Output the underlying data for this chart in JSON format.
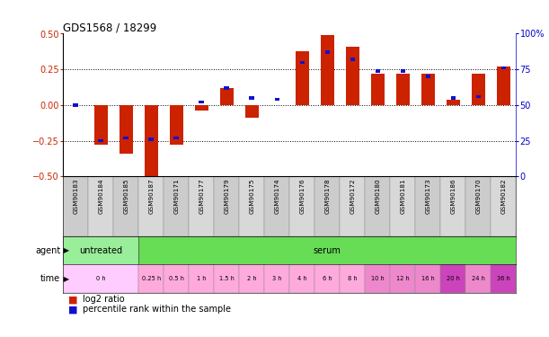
{
  "title": "GDS1568 / 18299",
  "samples": [
    "GSM90183",
    "GSM90184",
    "GSM90185",
    "GSM90187",
    "GSM90171",
    "GSM90177",
    "GSM90179",
    "GSM90175",
    "GSM90174",
    "GSM90176",
    "GSM90178",
    "GSM90172",
    "GSM90180",
    "GSM90181",
    "GSM90173",
    "GSM90186",
    "GSM90170",
    "GSM90182"
  ],
  "log2_ratio": [
    0.0,
    -0.28,
    -0.34,
    -0.52,
    -0.28,
    -0.04,
    0.12,
    -0.09,
    0.0,
    0.38,
    0.49,
    0.41,
    0.22,
    0.22,
    0.22,
    0.04,
    0.22,
    0.27
  ],
  "percentile_rank": [
    50,
    25,
    27,
    26,
    27,
    52,
    62,
    55,
    54,
    80,
    87,
    82,
    74,
    74,
    70,
    55,
    56,
    76
  ],
  "bar_color": "#cc2200",
  "dot_color": "#1111cc",
  "ylim_left": [
    -0.5,
    0.5
  ],
  "ylim_right": [
    0,
    100
  ],
  "yticks_left": [
    -0.5,
    -0.25,
    0.0,
    0.25,
    0.5
  ],
  "yticks_right": [
    0,
    25,
    50,
    75,
    100
  ],
  "dotted_lines": [
    -0.25,
    0.0,
    0.25
  ],
  "agent_groups": [
    {
      "label": "untreated",
      "start": 0,
      "end": 3,
      "color": "#88ee88"
    },
    {
      "label": "serum",
      "start": 3,
      "end": 18,
      "color": "#66dd55"
    }
  ],
  "time_groups": [
    {
      "label": "0 h",
      "start": 0,
      "end": 3,
      "color": "#ffccff"
    },
    {
      "label": "0.25 h",
      "start": 3,
      "end": 4,
      "color": "#ffaadd"
    },
    {
      "label": "0.5 h",
      "start": 4,
      "end": 5,
      "color": "#ffaadd"
    },
    {
      "label": "1 h",
      "start": 5,
      "end": 6,
      "color": "#ffaadd"
    },
    {
      "label": "1.5 h",
      "start": 6,
      "end": 7,
      "color": "#ffaadd"
    },
    {
      "label": "2 h",
      "start": 7,
      "end": 8,
      "color": "#ffaadd"
    },
    {
      "label": "3 h",
      "start": 8,
      "end": 9,
      "color": "#ffaadd"
    },
    {
      "label": "4 h",
      "start": 9,
      "end": 10,
      "color": "#ffaadd"
    },
    {
      "label": "6 h",
      "start": 10,
      "end": 11,
      "color": "#ffaadd"
    },
    {
      "label": "8 h",
      "start": 11,
      "end": 12,
      "color": "#ffaadd"
    },
    {
      "label": "10 h",
      "start": 12,
      "end": 13,
      "color": "#ee88cc"
    },
    {
      "label": "12 h",
      "start": 13,
      "end": 14,
      "color": "#ee88cc"
    },
    {
      "label": "16 h",
      "start": 14,
      "end": 15,
      "color": "#ee88cc"
    },
    {
      "label": "20 h",
      "start": 15,
      "end": 16,
      "color": "#cc44bb"
    },
    {
      "label": "24 h",
      "start": 16,
      "end": 17,
      "color": "#ee88cc"
    },
    {
      "label": "36 h",
      "start": 17,
      "end": 18,
      "color": "#cc44bb"
    }
  ],
  "legend_red_label": "log2 ratio",
  "legend_blue_label": "percentile rank within the sample",
  "left_axis_color": "#cc2200",
  "right_axis_color": "#0000cc",
  "bg_color": "#ffffff"
}
